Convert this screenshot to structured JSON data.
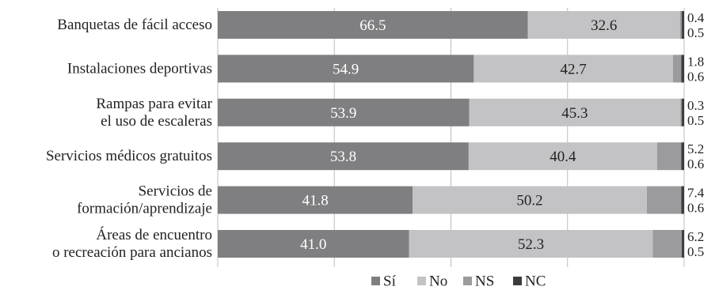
{
  "chart_data": {
    "type": "bar",
    "orientation": "horizontal",
    "stacked": true,
    "categories": [
      [
        "Banquetas de fácil acceso"
      ],
      [
        "Instalaciones deportivas"
      ],
      [
        "Rampas para evitar",
        "el uso de escaleras"
      ],
      [
        "Servicios médicos gratuitos"
      ],
      [
        "Servicios de",
        "formación/aprendizaje"
      ],
      [
        "Áreas de encuentro",
        "o recreación para ancianos"
      ]
    ],
    "series": [
      {
        "name": "Sí",
        "color": "#7f7f81",
        "values": [
          66.5,
          54.9,
          53.9,
          53.8,
          41.8,
          41.0
        ],
        "labels": [
          "66.5",
          "54.9",
          "53.9",
          "53.8",
          "41.8",
          "41.0"
        ]
      },
      {
        "name": "No",
        "color": "#c3c3c5",
        "values": [
          32.6,
          42.7,
          45.3,
          40.4,
          50.2,
          52.3
        ],
        "labels": [
          "32.6",
          "42.7",
          "45.3",
          "40.4",
          "50.2",
          "52.3"
        ]
      },
      {
        "name": "NS",
        "color": "#9b9b9d",
        "values": [
          0.4,
          1.8,
          0.3,
          5.2,
          7.4,
          6.2
        ],
        "labels": [
          "0.4",
          "1.8",
          "0.3",
          "5.2",
          "7.4",
          "6.2"
        ]
      },
      {
        "name": "NC",
        "color": "#3c3c3e",
        "values": [
          0.5,
          0.6,
          0.5,
          0.6,
          0.6,
          0.5
        ],
        "labels": [
          "0.5",
          "0.6",
          "0.5",
          "0.6",
          "0.6",
          "0.5"
        ]
      }
    ],
    "xlim": [
      0,
      100
    ],
    "grid": true,
    "legend_position": "bottom-center"
  }
}
